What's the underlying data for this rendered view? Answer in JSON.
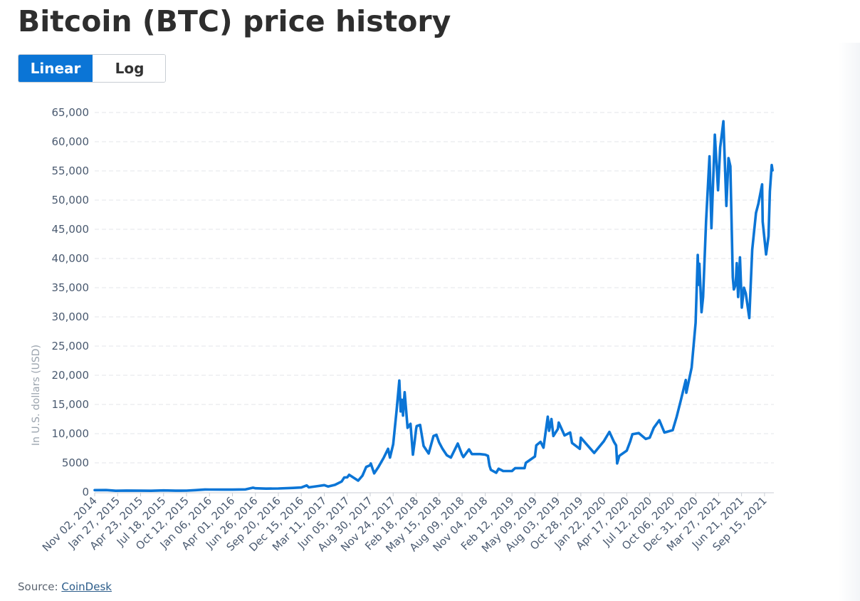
{
  "page": {
    "title": "Bitcoin (BTC) price history",
    "source_label": "Source:",
    "source_link": "CoinDesk"
  },
  "scale_toggle": {
    "options": [
      "Linear",
      "Log"
    ],
    "selected": "Linear"
  },
  "colors": {
    "line": "#0b75d6",
    "active_button": "#0b75d6",
    "grid": "#e3e6ea",
    "tick_text": "#4a5a70"
  },
  "chart_data": {
    "type": "line",
    "title": "",
    "xlabel": "",
    "ylabel": "In U.S. dollars (USD)",
    "ylim": [
      0,
      65000
    ],
    "xlim": [
      "2014-11-02",
      "2021-10-20"
    ],
    "y_ticks": [
      "0",
      "5000",
      "10,000",
      "15,000",
      "20,000",
      "25,000",
      "30,000",
      "35,000",
      "40,000",
      "45,000",
      "50,000",
      "55,000",
      "60,000",
      "65,000"
    ],
    "x_ticks": [
      {
        "date": "2014-11-02",
        "label": "Nov 02, 2014"
      },
      {
        "date": "2015-01-27",
        "label": "Jan 27, 2015"
      },
      {
        "date": "2015-04-23",
        "label": "Apr 23, 2015"
      },
      {
        "date": "2015-07-18",
        "label": "Jul 18, 2015"
      },
      {
        "date": "2015-10-12",
        "label": "Oct 12, 2015"
      },
      {
        "date": "2016-01-06",
        "label": "Jan 06, 2016"
      },
      {
        "date": "2016-04-01",
        "label": "Apr 01, 2016"
      },
      {
        "date": "2016-06-26",
        "label": "Jun 26, 2016"
      },
      {
        "date": "2016-09-20",
        "label": "Sep 20, 2016"
      },
      {
        "date": "2016-12-15",
        "label": "Dec 15, 2016"
      },
      {
        "date": "2017-03-11",
        "label": "Mar 11, 2017"
      },
      {
        "date": "2017-06-05",
        "label": "Jun 05, 2017"
      },
      {
        "date": "2017-08-30",
        "label": "Aug 30, 2017"
      },
      {
        "date": "2017-11-24",
        "label": "Nov 24, 2017"
      },
      {
        "date": "2018-02-18",
        "label": "Feb 18, 2018"
      },
      {
        "date": "2018-05-15",
        "label": "May 15, 2018"
      },
      {
        "date": "2018-08-09",
        "label": "Aug 09, 2018"
      },
      {
        "date": "2018-11-04",
        "label": "Nov 04, 2018"
      },
      {
        "date": "2019-02-12",
        "label": "Feb 12, 2019"
      },
      {
        "date": "2019-05-09",
        "label": "May 09, 2019"
      },
      {
        "date": "2019-08-03",
        "label": "Aug 03, 2019"
      },
      {
        "date": "2019-10-28",
        "label": "Oct 28, 2019"
      },
      {
        "date": "2020-01-22",
        "label": "Jan 22, 2020"
      },
      {
        "date": "2020-04-17",
        "label": "Apr 17, 2020"
      },
      {
        "date": "2020-07-12",
        "label": "Jul 12, 2020"
      },
      {
        "date": "2020-10-06",
        "label": "Oct 06, 2020"
      },
      {
        "date": "2020-12-31",
        "label": "Dec 31, 2020"
      },
      {
        "date": "2021-03-27",
        "label": "Mar 27, 2021"
      },
      {
        "date": "2021-06-21",
        "label": "Jun 21, 2021"
      },
      {
        "date": "2021-09-15",
        "label": "Sep 15, 2021"
      }
    ],
    "grid": true,
    "series": [
      {
        "color": "#0b75d6",
        "points": [
          [
            "2014-11-02",
            330
          ],
          [
            "2014-12-15",
            340
          ],
          [
            "2015-01-20",
            220
          ],
          [
            "2015-03-01",
            260
          ],
          [
            "2015-04-23",
            230
          ],
          [
            "2015-06-01",
            225
          ],
          [
            "2015-07-18",
            280
          ],
          [
            "2015-09-01",
            230
          ],
          [
            "2015-10-12",
            250
          ],
          [
            "2015-11-15",
            330
          ],
          [
            "2015-12-20",
            440
          ],
          [
            "2016-01-06",
            430
          ],
          [
            "2016-03-01",
            420
          ],
          [
            "2016-04-01",
            420
          ],
          [
            "2016-05-20",
            450
          ],
          [
            "2016-06-17",
            740
          ],
          [
            "2016-06-26",
            650
          ],
          [
            "2016-08-05",
            580
          ],
          [
            "2016-09-20",
            610
          ],
          [
            "2016-11-15",
            710
          ],
          [
            "2016-12-15",
            780
          ],
          [
            "2017-01-04",
            1130
          ],
          [
            "2017-01-12",
            800
          ],
          [
            "2017-02-15",
            1020
          ],
          [
            "2017-03-11",
            1180
          ],
          [
            "2017-03-25",
            950
          ],
          [
            "2017-04-20",
            1230
          ],
          [
            "2017-05-15",
            1800
          ],
          [
            "2017-05-25",
            2500
          ],
          [
            "2017-06-05",
            2520
          ],
          [
            "2017-06-12",
            2950
          ],
          [
            "2017-07-16",
            1950
          ],
          [
            "2017-08-01",
            2800
          ],
          [
            "2017-08-15",
            4300
          ],
          [
            "2017-08-30",
            4600
          ],
          [
            "2017-09-01",
            4900
          ],
          [
            "2017-09-14",
            3200
          ],
          [
            "2017-09-30",
            4300
          ],
          [
            "2017-10-20",
            5900
          ],
          [
            "2017-11-05",
            7400
          ],
          [
            "2017-11-12",
            5900
          ],
          [
            "2017-11-24",
            8200
          ],
          [
            "2017-12-07",
            14000
          ],
          [
            "2017-12-17",
            19100
          ],
          [
            "2017-12-22",
            13800
          ],
          [
            "2017-12-27",
            15800
          ],
          [
            "2017-12-31",
            13100
          ],
          [
            "2018-01-06",
            17100
          ],
          [
            "2018-01-17",
            11000
          ],
          [
            "2018-01-28",
            11700
          ],
          [
            "2018-02-06",
            6400
          ],
          [
            "2018-02-12",
            8500
          ],
          [
            "2018-02-18",
            10800
          ],
          [
            "2018-02-20",
            11300
          ],
          [
            "2018-03-05",
            11500
          ],
          [
            "2018-03-18",
            7900
          ],
          [
            "2018-04-06",
            6600
          ],
          [
            "2018-04-24",
            9600
          ],
          [
            "2018-05-05",
            9800
          ],
          [
            "2018-05-15",
            8500
          ],
          [
            "2018-05-28",
            7400
          ],
          [
            "2018-06-13",
            6300
          ],
          [
            "2018-06-28",
            5900
          ],
          [
            "2018-07-24",
            8300
          ],
          [
            "2018-08-09",
            6400
          ],
          [
            "2018-08-14",
            6000
          ],
          [
            "2018-09-04",
            7300
          ],
          [
            "2018-09-15",
            6500
          ],
          [
            "2018-10-15",
            6500
          ],
          [
            "2018-11-04",
            6400
          ],
          [
            "2018-11-14",
            6200
          ],
          [
            "2018-11-20",
            4500
          ],
          [
            "2018-11-25",
            3800
          ],
          [
            "2018-12-15",
            3300
          ],
          [
            "2018-12-24",
            4000
          ],
          [
            "2019-01-10",
            3600
          ],
          [
            "2019-02-12",
            3600
          ],
          [
            "2019-02-24",
            4100
          ],
          [
            "2019-03-31",
            4100
          ],
          [
            "2019-04-05",
            5000
          ],
          [
            "2019-05-09",
            6100
          ],
          [
            "2019-05-14",
            8000
          ],
          [
            "2019-05-30",
            8600
          ],
          [
            "2019-06-10",
            7600
          ],
          [
            "2019-06-26",
            12900
          ],
          [
            "2019-07-01",
            10500
          ],
          [
            "2019-07-10",
            12500
          ],
          [
            "2019-07-17",
            9600
          ],
          [
            "2019-08-03",
            10800
          ],
          [
            "2019-08-06",
            11900
          ],
          [
            "2019-08-28",
            9700
          ],
          [
            "2019-09-18",
            10200
          ],
          [
            "2019-09-25",
            8400
          ],
          [
            "2019-10-24",
            7400
          ],
          [
            "2019-10-28",
            9300
          ],
          [
            "2019-11-20",
            8100
          ],
          [
            "2019-12-17",
            6700
          ],
          [
            "2020-01-22",
            8700
          ],
          [
            "2020-02-12",
            10300
          ],
          [
            "2020-02-29",
            8600
          ],
          [
            "2020-03-08",
            8000
          ],
          [
            "2020-03-12",
            4900
          ],
          [
            "2020-03-20",
            6200
          ],
          [
            "2020-04-17",
            7100
          ],
          [
            "2020-04-30",
            8700
          ],
          [
            "2020-05-08",
            9900
          ],
          [
            "2020-06-01",
            10100
          ],
          [
            "2020-06-27",
            9100
          ],
          [
            "2020-07-12",
            9300
          ],
          [
            "2020-07-27",
            11000
          ],
          [
            "2020-08-17",
            12300
          ],
          [
            "2020-09-05",
            10200
          ],
          [
            "2020-10-06",
            10600
          ],
          [
            "2020-10-21",
            12900
          ],
          [
            "2020-11-05",
            15600
          ],
          [
            "2020-11-24",
            19200
          ],
          [
            "2020-11-26",
            17000
          ],
          [
            "2020-12-16",
            21300
          ],
          [
            "2020-12-31",
            29000
          ],
          [
            "2021-01-08",
            40600
          ],
          [
            "2021-01-11",
            35500
          ],
          [
            "2021-01-14",
            39100
          ],
          [
            "2021-01-22",
            30800
          ],
          [
            "2021-01-28",
            33400
          ],
          [
            "2021-02-08",
            46400
          ],
          [
            "2021-02-21",
            57500
          ],
          [
            "2021-02-28",
            45200
          ],
          [
            "2021-03-13",
            61200
          ],
          [
            "2021-03-25",
            51700
          ],
          [
            "2021-04-02",
            59000
          ],
          [
            "2021-04-14",
            63500
          ],
          [
            "2021-04-25",
            49000
          ],
          [
            "2021-05-03",
            57200
          ],
          [
            "2021-05-10",
            55800
          ],
          [
            "2021-05-13",
            49700
          ],
          [
            "2021-05-19",
            36800
          ],
          [
            "2021-05-23",
            34700
          ],
          [
            "2021-05-30",
            35600
          ],
          [
            "2021-06-03",
            39200
          ],
          [
            "2021-06-08",
            33400
          ],
          [
            "2021-06-15",
            40200
          ],
          [
            "2021-06-22",
            31600
          ],
          [
            "2021-06-30",
            35000
          ],
          [
            "2021-07-07",
            34000
          ],
          [
            "2021-07-20",
            29800
          ],
          [
            "2021-07-31",
            41500
          ],
          [
            "2021-08-14",
            47800
          ],
          [
            "2021-08-23",
            49400
          ],
          [
            "2021-09-06",
            52700
          ],
          [
            "2021-09-08",
            46300
          ],
          [
            "2021-09-21",
            40700
          ],
          [
            "2021-09-30",
            43800
          ],
          [
            "2021-10-05",
            51500
          ],
          [
            "2021-10-12",
            56000
          ],
          [
            "2021-10-15",
            55100
          ]
        ]
      }
    ]
  }
}
